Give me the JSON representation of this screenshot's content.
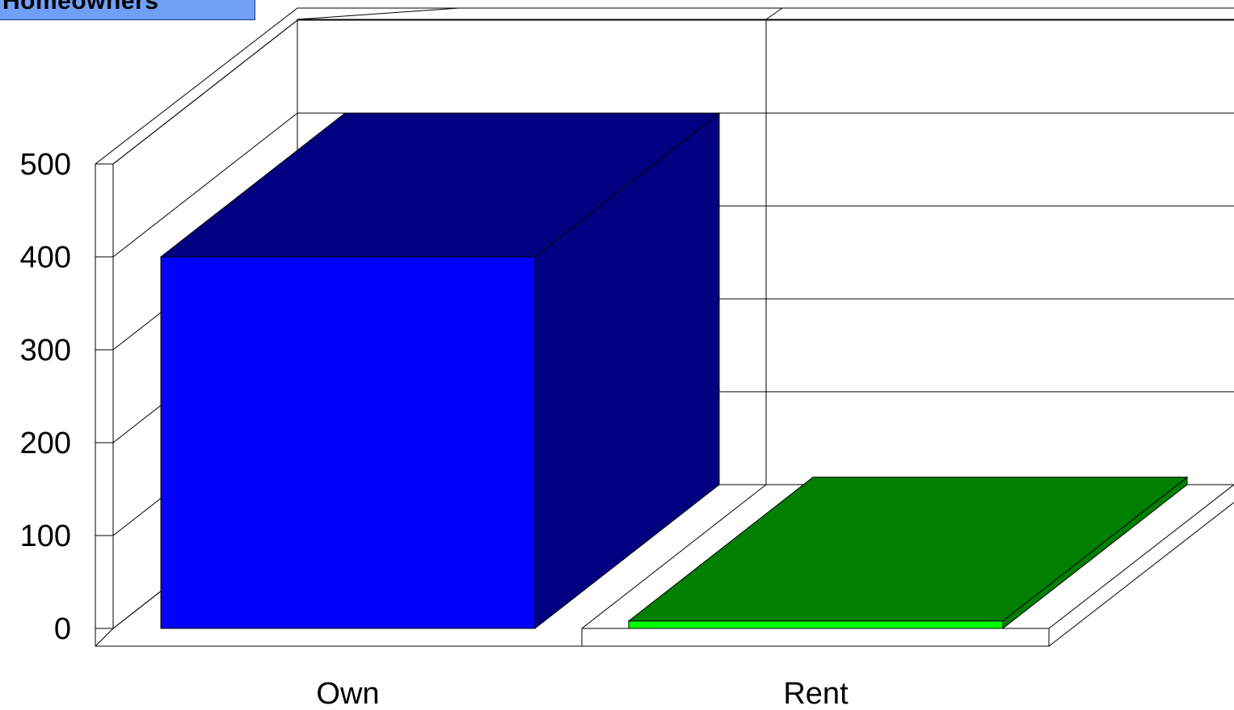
{
  "chart_data": {
    "type": "bar",
    "title": "Homeowners",
    "categories": [
      "Own",
      "Rent"
    ],
    "values": [
      400,
      8
    ],
    "ylim": [
      0,
      500
    ],
    "yticks": [
      "0",
      "100",
      "200",
      "300",
      "400",
      "500"
    ],
    "grid": true,
    "three_d": true,
    "colors": {
      "Own": {
        "front": "#0000ff",
        "top": "#000080",
        "side": "#000080"
      },
      "Rent": {
        "front": "#00ff00",
        "top": "#008000",
        "side": "#008000"
      }
    }
  }
}
